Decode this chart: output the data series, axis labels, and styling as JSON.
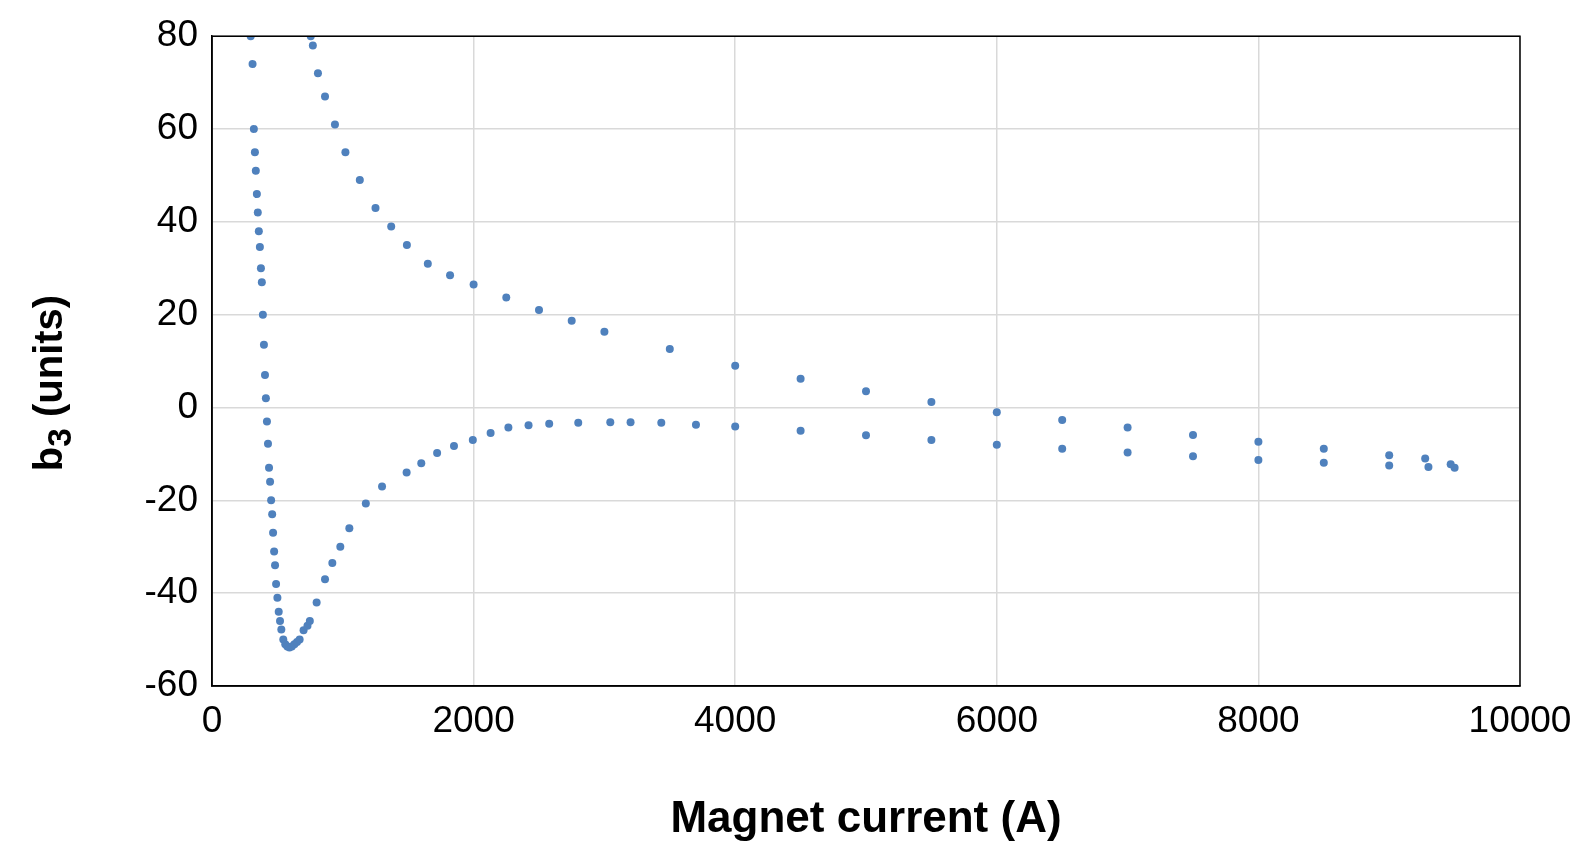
{
  "chart_data": {
    "type": "scatter",
    "xlabel": "Magnet current (A)",
    "ylabel": "b$_{3}$ (units)",
    "xlim": [
      0,
      10000
    ],
    "xticks": [
      0,
      2000,
      4000,
      6000,
      8000,
      10000
    ],
    "ylim": [
      -60,
      80
    ],
    "yticks": [
      -60,
      -40,
      -20,
      0,
      20,
      40,
      60,
      80
    ],
    "grid": true,
    "marker": "circle",
    "series": [
      {
        "color": "#4f81bd",
        "x": [
          296,
          310,
          320,
          328,
          335,
          343,
          350,
          358,
          366,
          374,
          381,
          389,
          397,
          405,
          412,
          420,
          428,
          436,
          444,
          452,
          460,
          467,
          475,
          482,
          490,
          500,
          510,
          520,
          530,
          545,
          560,
          576,
          592,
          610,
          630,
          650,
          670,
          700,
          730,
          748,
          800,
          864,
          920,
          981,
          1050,
          1176,
          1300,
          1488,
          1600,
          1721,
          1850,
          1994,
          2130,
          2266,
          2420,
          2578,
          2800,
          3045,
          3200,
          3435,
          3700,
          4000,
          4500,
          5000,
          5500,
          6000,
          6500,
          7000,
          7500,
          8000,
          8500,
          9000,
          9300,
          9500,
          9470,
          9275,
          9000,
          8500,
          8000,
          7500,
          7000,
          6500,
          6000,
          5500,
          5000,
          4500,
          4000,
          3500,
          3000,
          2750,
          2500,
          2250,
          2000,
          1820,
          1650,
          1490,
          1370,
          1250,
          1130,
          1020,
          940,
          864,
          810,
          771,
          755
        ],
        "values": [
          80,
          74,
          60,
          55,
          51,
          46,
          42,
          38,
          34.6,
          30,
          27,
          20,
          13.5,
          7,
          2,
          -3,
          -7.8,
          -13,
          -16,
          -20,
          -23,
          -27,
          -31,
          -34,
          -38,
          -41,
          -44,
          -46,
          -47.8,
          -50,
          -51,
          -51.5,
          -51.7,
          -51.5,
          -51,
          -50.5,
          -50,
          -48,
          -47,
          -46,
          -42,
          -37,
          -33.5,
          -30,
          -26,
          -20.7,
          -17,
          -14,
          -12,
          -9.8,
          -8.3,
          -7,
          -5.5,
          -4.3,
          -3.8,
          -3.5,
          -3.3,
          -3.2,
          -3.2,
          -3.3,
          -3.7,
          -4.1,
          -5,
          -6,
          -7,
          -8,
          -8.9,
          -9.7,
          -10.5,
          -11.3,
          -11.9,
          -12.5,
          -12.8,
          -13,
          -12.2,
          -11,
          -10.3,
          -8.9,
          -7.4,
          -5.9,
          -4.3,
          -2.7,
          -1,
          1.2,
          3.5,
          6.2,
          9,
          12.6,
          16.3,
          18.7,
          21,
          23.7,
          26.5,
          28.5,
          31,
          35,
          39,
          43,
          49,
          55,
          61,
          67,
          72,
          78,
          80
        ]
      }
    ]
  }
}
